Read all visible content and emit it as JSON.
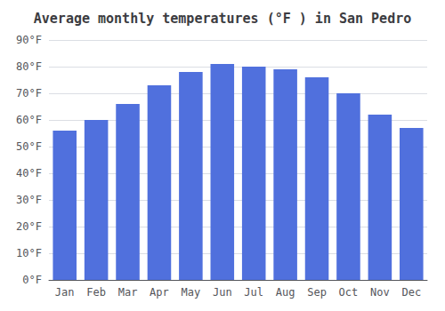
{
  "chart_data": {
    "type": "bar",
    "title": "Average monthly temperatures (°F ) in San Pedro",
    "categories": [
      "Jan",
      "Feb",
      "Mar",
      "Apr",
      "May",
      "Jun",
      "Jul",
      "Aug",
      "Sep",
      "Oct",
      "Nov",
      "Dec"
    ],
    "values": [
      56,
      60,
      66,
      73,
      78,
      81,
      80,
      79,
      76,
      70,
      62,
      57
    ],
    "ylim": [
      0,
      90
    ],
    "yticks": [
      {
        "value": 0,
        "label": "0°F"
      },
      {
        "value": 10,
        "label": "10°F"
      },
      {
        "value": 20,
        "label": "20°F"
      },
      {
        "value": 30,
        "label": "30°F"
      },
      {
        "value": 40,
        "label": "40°F"
      },
      {
        "value": 50,
        "label": "50°F"
      },
      {
        "value": 60,
        "label": "60°F"
      },
      {
        "value": 70,
        "label": "70°F"
      },
      {
        "value": 80,
        "label": "80°F"
      },
      {
        "value": 90,
        "label": "90°F"
      }
    ],
    "grid": true
  }
}
